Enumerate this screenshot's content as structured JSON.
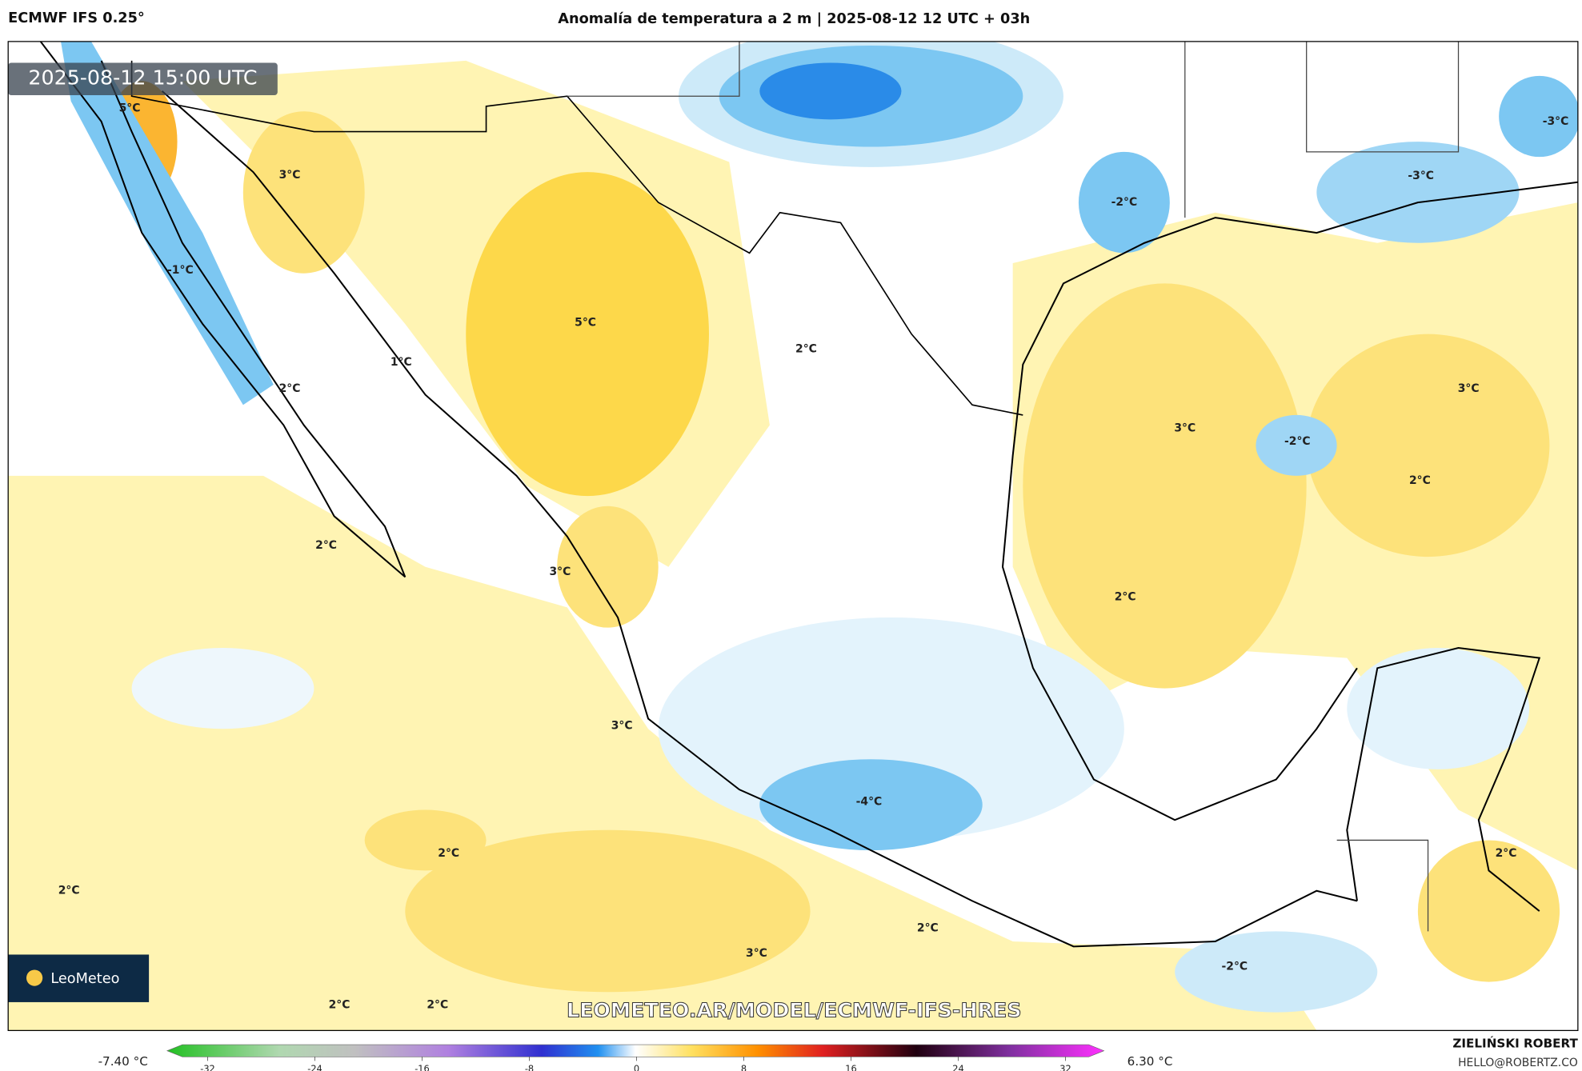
{
  "header": {
    "model": "ECMWF IFS 0.25°",
    "title": "Anomalía de temperatura a 2 m | 2025-08-12 12 UTC + 03h"
  },
  "map": {
    "timestamp": "2025-08-12 15:00 UTC",
    "contour_labels": [
      "5°C",
      "3°C",
      "-1°C",
      "1°C",
      "2°C",
      "5°C",
      "2°C",
      "-2°C",
      "-3°C",
      "-3°C",
      "3°C",
      "-2°C",
      "3°C",
      "2°C",
      "2°C",
      "3°C",
      "2°C",
      "3°C",
      "-4°C",
      "2°C",
      "2°C",
      "2°C",
      "3°C",
      "-2°C",
      "2°C",
      "2°C",
      "2°C"
    ],
    "logo": "LeoMeteo",
    "watermark": "LEOMETEO.AR/MODEL/ECMWF-IFS-HRES"
  },
  "colorbar": {
    "min_label": "-7.40 °C",
    "max_label": "6.30 °C",
    "ticks": [
      -32,
      -24,
      -16,
      -8,
      0,
      8,
      16,
      24,
      32
    ]
  },
  "footer": {
    "author": "ZIELIŃSKI ROBERT",
    "email": "HELLO@ROBERTZ.CO"
  }
}
